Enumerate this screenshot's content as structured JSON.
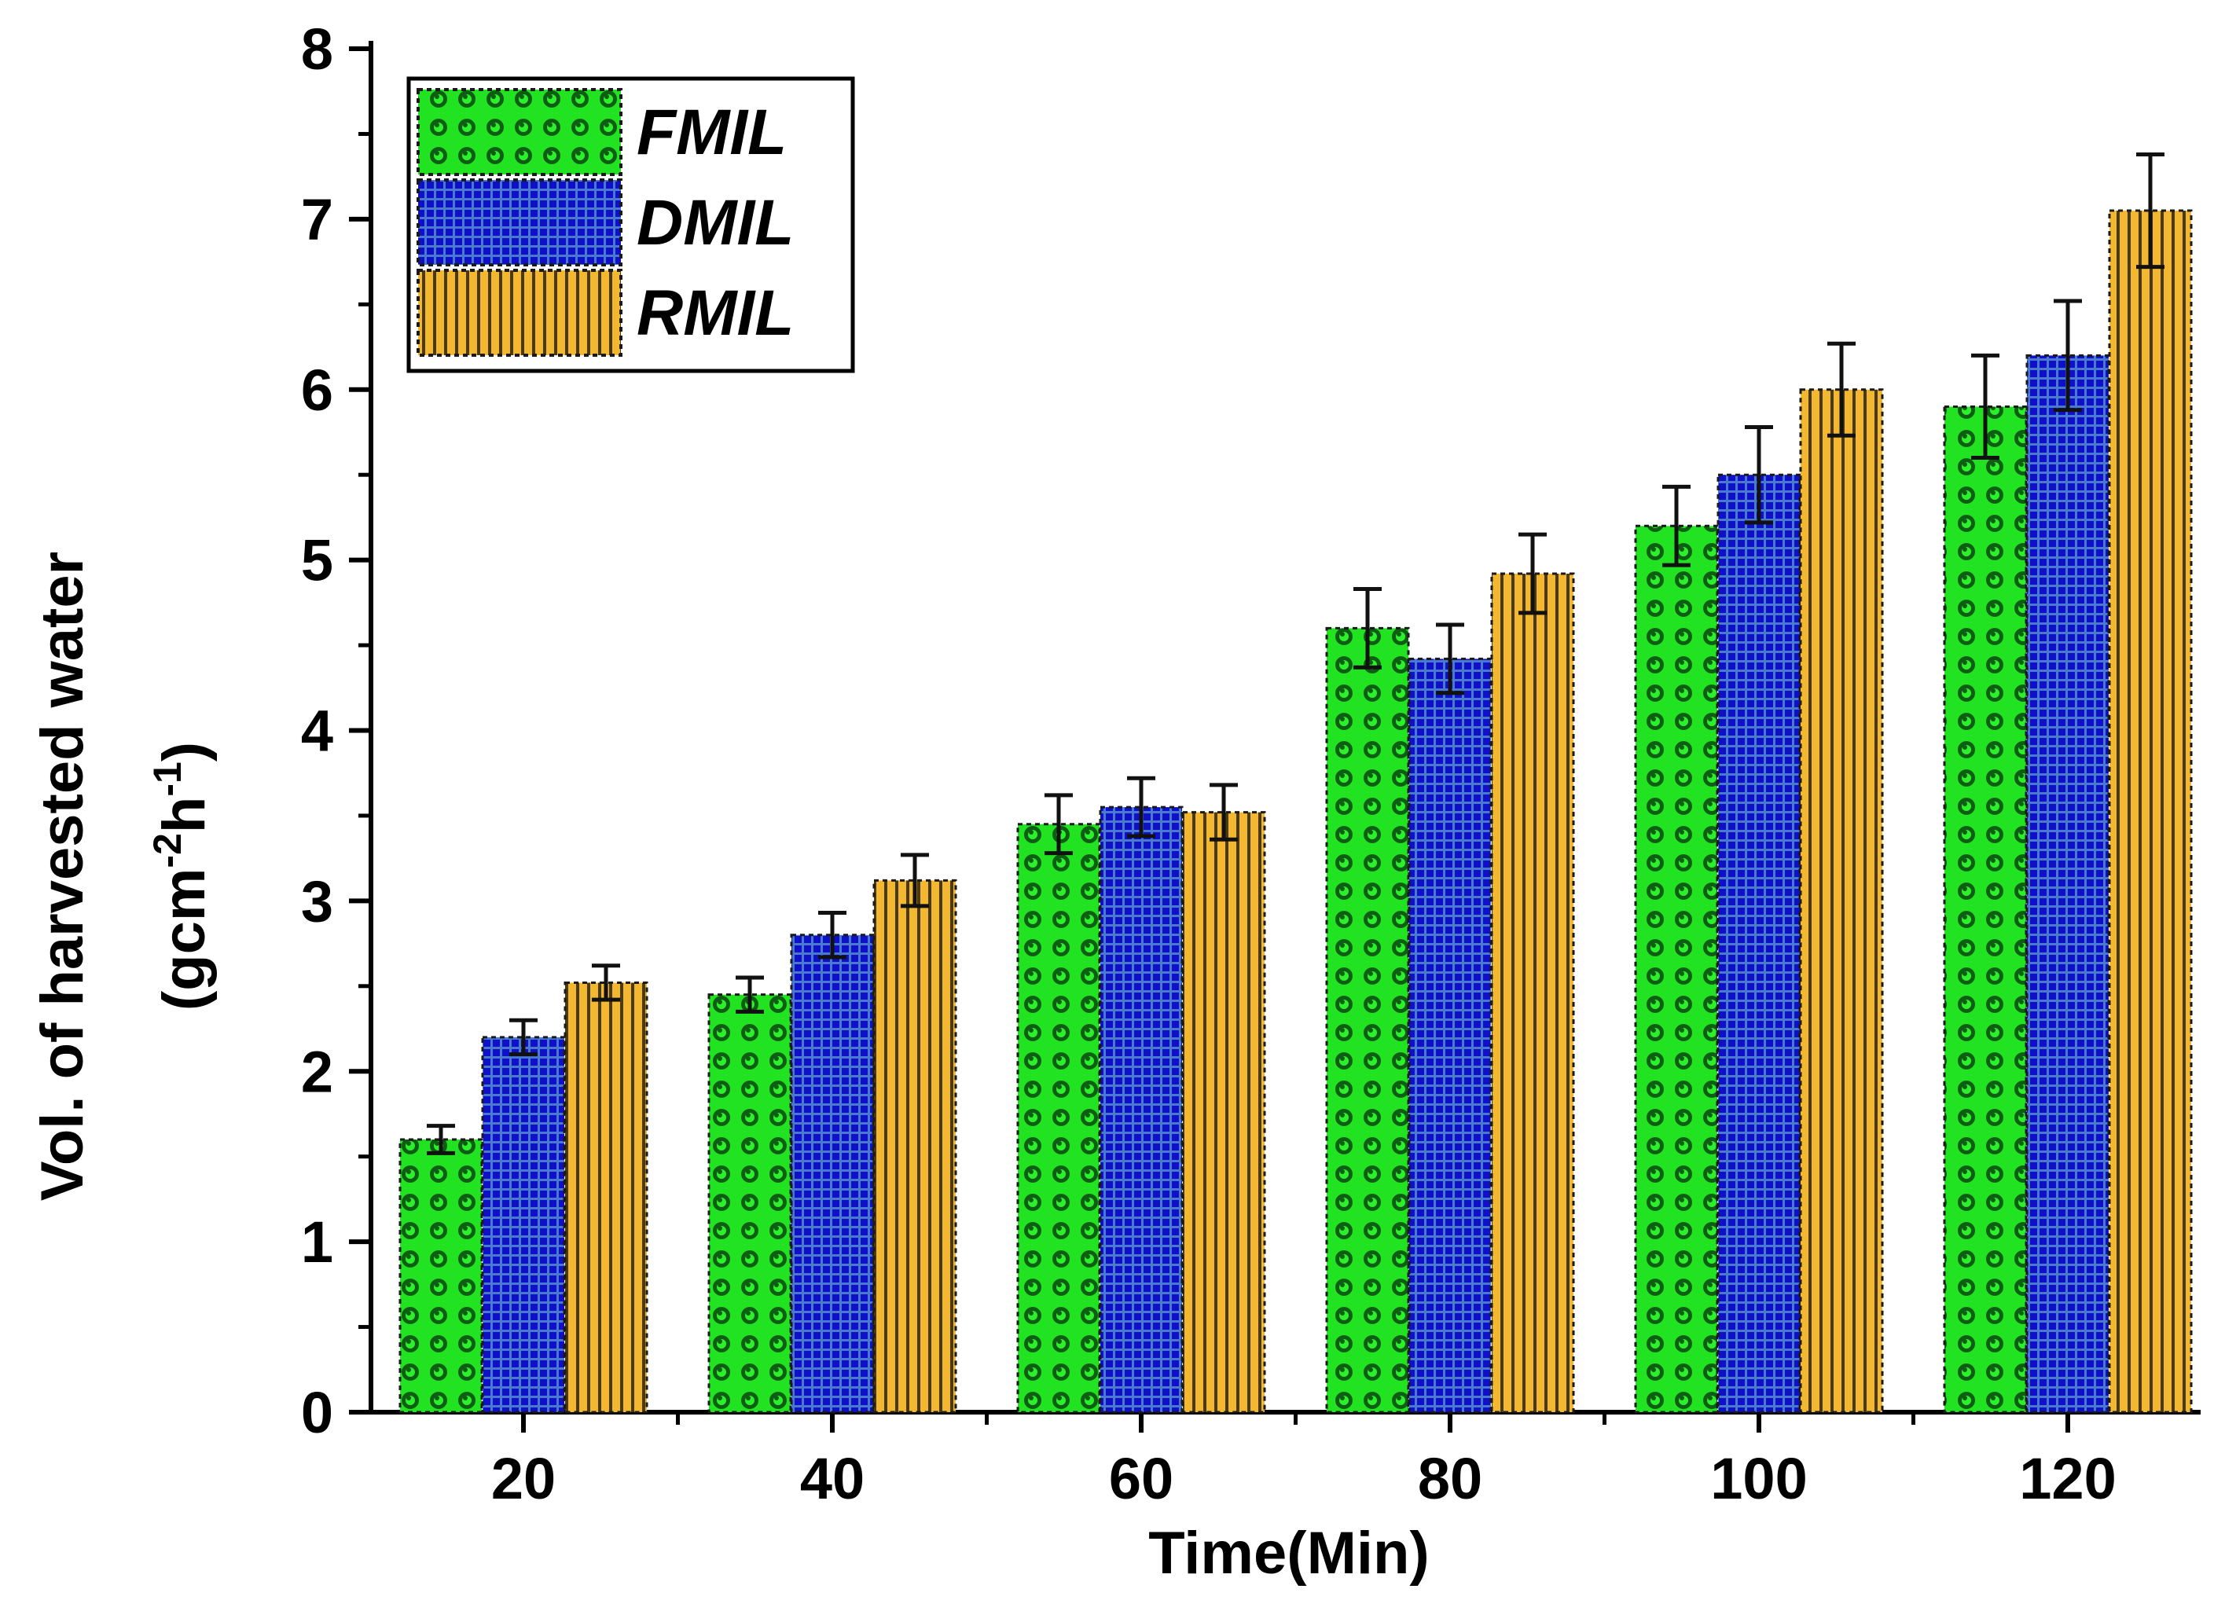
{
  "chart_data": {
    "type": "bar",
    "title": "",
    "xlabel": "Time(Min)",
    "ylabel": "Vol. of harvested water",
    "ylabel_unit_parts": [
      "(gcm",
      "-2",
      "h",
      "-1",
      ")"
    ],
    "categories": [
      "20",
      "40",
      "60",
      "80",
      "100",
      "120"
    ],
    "ylim": [
      0,
      8
    ],
    "yticks": [
      "0",
      "1",
      "2",
      "3",
      "4",
      "5",
      "6",
      "7",
      "8"
    ],
    "legend_position": "top-left",
    "series": [
      {
        "name": "FMIL",
        "color": "#22dd22",
        "pattern": "circles",
        "values": [
          1.6,
          2.45,
          3.45,
          4.6,
          5.2,
          5.9
        ],
        "errors": [
          0.08,
          0.1,
          0.17,
          0.23,
          0.23,
          0.3
        ]
      },
      {
        "name": "DMIL",
        "color": "#1a1acc",
        "pattern": "grid",
        "values": [
          2.2,
          2.8,
          3.55,
          4.42,
          5.5,
          6.2
        ],
        "errors": [
          0.1,
          0.13,
          0.17,
          0.2,
          0.28,
          0.32
        ]
      },
      {
        "name": "RMIL",
        "color": "#f0b429",
        "pattern": "vertical-lines",
        "values": [
          2.52,
          3.12,
          3.52,
          4.92,
          6.0,
          7.05
        ],
        "errors": [
          0.1,
          0.15,
          0.16,
          0.23,
          0.27,
          0.33
        ]
      }
    ]
  }
}
